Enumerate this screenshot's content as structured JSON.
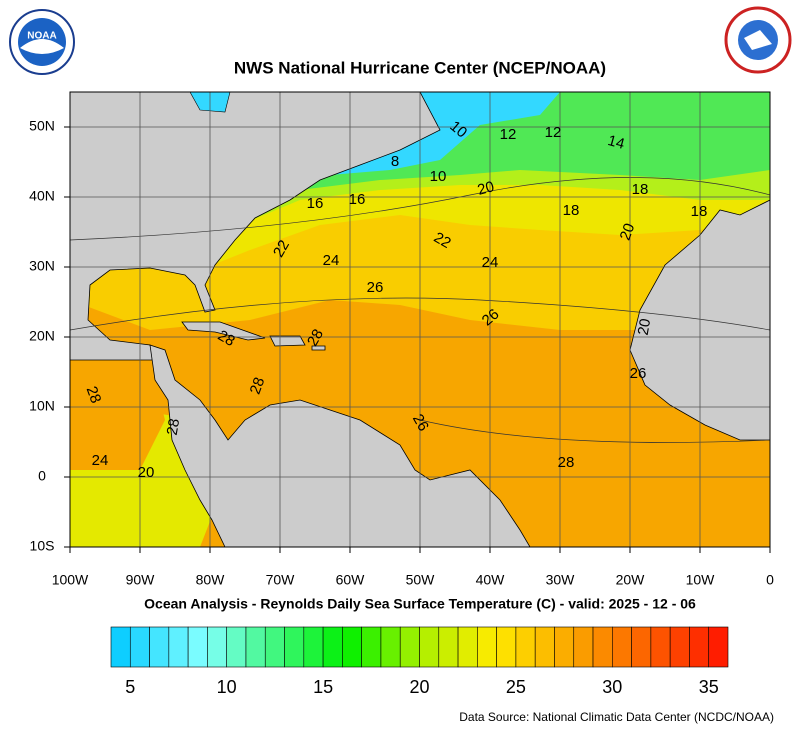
{
  "header": {
    "title": "NWS National Hurricane Center (NCEP/NOAA)",
    "logo_text": "NOAA"
  },
  "map": {
    "xlim": [
      -100,
      0
    ],
    "ylim": [
      -10,
      55
    ],
    "xticks": [
      {
        "value": -100,
        "label": "100W"
      },
      {
        "value": -90,
        "label": "90W"
      },
      {
        "value": -80,
        "label": "80W"
      },
      {
        "value": -70,
        "label": "70W"
      },
      {
        "value": -60,
        "label": "60W"
      },
      {
        "value": -50,
        "label": "50W"
      },
      {
        "value": -40,
        "label": "40W"
      },
      {
        "value": -30,
        "label": "30W"
      },
      {
        "value": -20,
        "label": "20W"
      },
      {
        "value": -10,
        "label": "10W"
      },
      0
    ],
    "yticks": [
      {
        "value": 50,
        "label": "50N"
      },
      {
        "value": 40,
        "label": "40N"
      },
      {
        "value": 30,
        "label": "30N"
      },
      {
        "value": 20,
        "label": "20N"
      },
      {
        "value": 10,
        "label": "10N"
      },
      0,
      {
        "value": -10,
        "label": "10S"
      }
    ],
    "grid": true,
    "contour_labels": [
      "10",
      "12",
      "12",
      "14",
      "8",
      "10",
      "20",
      "16",
      "16",
      "18",
      "18",
      "18",
      "20",
      "22",
      "22",
      "24",
      "24",
      "26",
      "26",
      "20",
      "26",
      "28",
      "28",
      "28",
      "28",
      "28",
      "26",
      "24",
      "20",
      "28"
    ],
    "subtitle": "Ocean Analysis - Reynolds Daily Sea Surface Temperature (C) - valid: 2025 - 12 - 06"
  },
  "colorbar": {
    "lim": [
      4,
      36
    ],
    "ticks": [
      5,
      10,
      15,
      20,
      25,
      30,
      35
    ]
  },
  "footer": {
    "source": "Data Source: National Climatic Data Center (NCDC/NOAA)"
  }
}
